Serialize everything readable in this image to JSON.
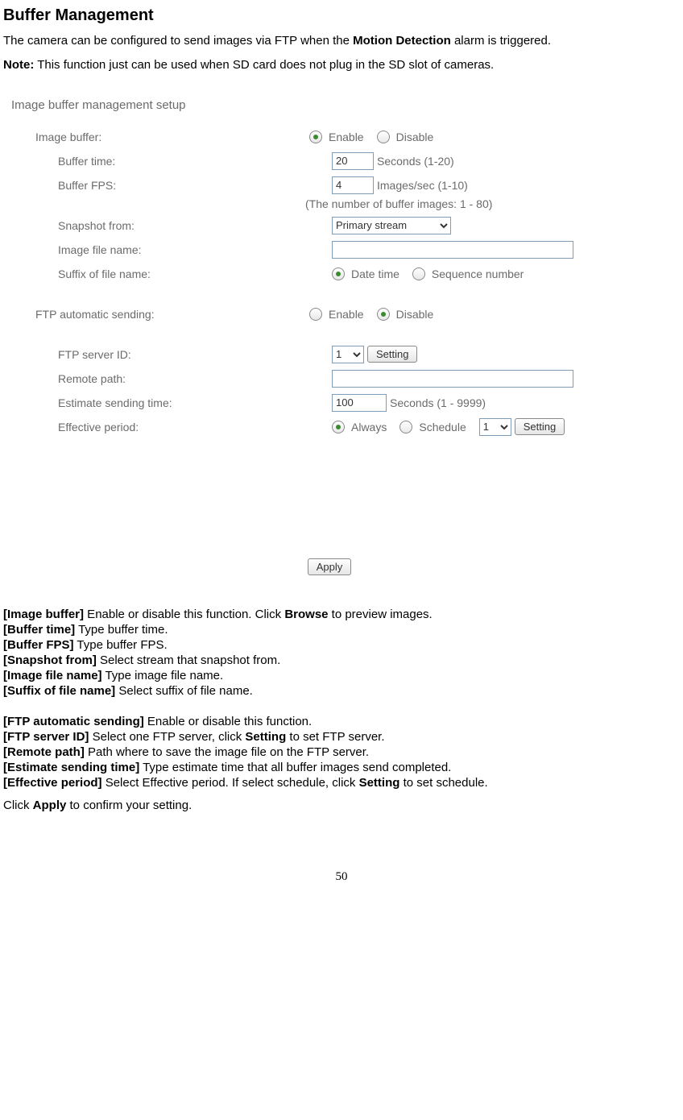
{
  "heading": "Buffer Management",
  "intro_pre": "The camera can be configured to send images via FTP when the ",
  "intro_bold": "Motion Detection",
  "intro_post": " alarm is triggered.",
  "note_label": "Note:",
  "note_text": " This function just can be used when SD card does not plug in the SD slot of cameras.",
  "panel": {
    "title": "Image buffer management setup",
    "image_buffer_label": "Image buffer:",
    "enable": "Enable",
    "disable": "Disable",
    "buffer_time_label": "Buffer time:",
    "buffer_time_value": "20",
    "buffer_time_hint": "Seconds (1-20)",
    "buffer_fps_label": "Buffer FPS:",
    "buffer_fps_value": "4",
    "buffer_fps_hint": "Images/sec (1-10)",
    "buffer_count_hint": "(The number of buffer images: 1 - 80)",
    "snapshot_from_label": "Snapshot from:",
    "snapshot_from_value": "Primary stream",
    "image_file_name_label": "Image file name:",
    "image_file_name_value": "",
    "suffix_label": "Suffix of file name:",
    "suffix_datetime": "Date time",
    "suffix_sequence": "Sequence number",
    "ftp_auto_label": "FTP automatic sending:",
    "ftp_server_id_label": "FTP server ID:",
    "ftp_server_id_value": "1",
    "setting_btn": "Setting",
    "remote_path_label": "Remote path:",
    "remote_path_value": "",
    "estimate_label": "Estimate sending time:",
    "estimate_value": "100",
    "estimate_hint": "Seconds (1 - 9999)",
    "effective_label": "Effective period:",
    "always": "Always",
    "schedule": "Schedule",
    "schedule_value": "1",
    "apply_btn": "Apply"
  },
  "desc": {
    "d1_b": "[Image buffer]",
    "d1_t": " Enable or disable this function. Click ",
    "d1_b2": "Browse",
    "d1_t2": " to preview images.",
    "d2_b": "[Buffer time]",
    "d2_t": " Type buffer time.",
    "d3_b": "[Buffer FPS]",
    "d3_t": " Type buffer FPS.",
    "d4_b": "[Snapshot from]",
    "d4_t": " Select stream that snapshot from.",
    "d5_b": "[Image file name]",
    "d5_t": " Type image file name.",
    "d6_b": "[Suffix of file name]",
    "d6_t": " Select suffix of file name.",
    "d7_b": "[FTP automatic sending]",
    "d7_t": " Enable or disable this function.",
    "d8_b": "[FTP server ID]",
    "d8_t": " Select one FTP server, click ",
    "d8_b2": "Setting",
    "d8_t2": " to set FTP server.",
    "d9_b": "[Remote path]",
    "d9_t": " Path where to save the image file on the FTP server.",
    "d10_b": "[Estimate sending time]",
    "d10_t": " Type estimate time that all buffer images send completed.",
    "d11_b": "[Effective period]",
    "d11_t": " Select Effective period. If select schedule, click ",
    "d11_b2": "Setting",
    "d11_t2": " to set schedule."
  },
  "confirm_pre": "Click ",
  "confirm_bold": "Apply",
  "confirm_post": " to confirm your setting.",
  "page_number": "50"
}
